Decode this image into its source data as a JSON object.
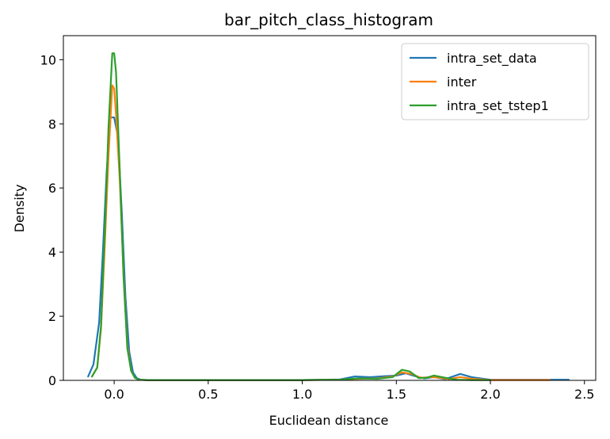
{
  "chart_data": {
    "type": "line",
    "title": "bar_pitch_class_histogram",
    "xlabel": "Euclidean distance",
    "ylabel": "Density",
    "xlim": [
      -0.27,
      2.56
    ],
    "ylim": [
      0,
      10.75
    ],
    "xticks": [
      0.0,
      0.5,
      1.0,
      1.5,
      2.0,
      2.5
    ],
    "xtick_labels": [
      "0.0",
      "0.5",
      "1.0",
      "1.5",
      "2.0",
      "2.5"
    ],
    "yticks": [
      0,
      2,
      4,
      6,
      8,
      10
    ],
    "ytick_labels": [
      "0",
      "2",
      "4",
      "6",
      "8",
      "10"
    ],
    "grid": false,
    "legend_position": "top-right",
    "series": [
      {
        "name": "intra_set_data",
        "color": "#1f77b4",
        "x": [
          -0.14,
          -0.11,
          -0.08,
          -0.06,
          -0.04,
          -0.02,
          0.0,
          0.02,
          0.04,
          0.06,
          0.08,
          0.1,
          0.12,
          0.14,
          0.18,
          0.3,
          0.6,
          1.0,
          1.2,
          1.28,
          1.36,
          1.44,
          1.5,
          1.55,
          1.6,
          1.65,
          1.7,
          1.76,
          1.84,
          1.9,
          2.0,
          2.1,
          2.2,
          2.3,
          2.42
        ],
        "values": [
          0.1,
          0.5,
          1.8,
          4.0,
          6.5,
          8.2,
          8.2,
          7.6,
          5.3,
          2.6,
          0.9,
          0.25,
          0.07,
          0.02,
          0.01,
          0.01,
          0.01,
          0.01,
          0.03,
          0.12,
          0.1,
          0.13,
          0.15,
          0.22,
          0.13,
          0.06,
          0.1,
          0.04,
          0.2,
          0.1,
          0.02,
          0.02,
          0.02,
          0.02,
          0.02
        ]
      },
      {
        "name": "inter",
        "color": "#ff7f0e",
        "x": [
          -0.12,
          -0.09,
          -0.07,
          -0.05,
          -0.03,
          -0.01,
          0.0,
          0.01,
          0.03,
          0.05,
          0.07,
          0.09,
          0.11,
          0.13,
          0.17,
          0.3,
          0.6,
          1.0,
          1.2,
          1.3,
          1.4,
          1.48,
          1.53,
          1.58,
          1.63,
          1.68,
          1.72,
          1.78,
          1.84,
          1.9,
          2.0,
          2.1,
          2.2,
          2.32
        ],
        "values": [
          0.1,
          0.4,
          1.6,
          4.2,
          7.0,
          9.2,
          9.1,
          8.3,
          6.2,
          3.3,
          1.1,
          0.3,
          0.08,
          0.02,
          0.01,
          0.01,
          0.01,
          0.01,
          0.02,
          0.05,
          0.06,
          0.12,
          0.25,
          0.2,
          0.08,
          0.1,
          0.09,
          0.04,
          0.1,
          0.05,
          0.01,
          0.01,
          0.01,
          0.01
        ]
      },
      {
        "name": "intra_set_tstep1",
        "color": "#2ca02c",
        "x": [
          -0.12,
          -0.09,
          -0.07,
          -0.05,
          -0.03,
          -0.01,
          0.0,
          0.01,
          0.03,
          0.05,
          0.07,
          0.09,
          0.11,
          0.13,
          0.17,
          0.3,
          0.6,
          1.0,
          1.2,
          1.3,
          1.4,
          1.48,
          1.53,
          1.57,
          1.62,
          1.66,
          1.7,
          1.76,
          1.82,
          1.9,
          2.0
        ],
        "values": [
          0.1,
          0.4,
          1.7,
          4.6,
          7.9,
          10.2,
          10.2,
          9.6,
          6.5,
          3.2,
          1.0,
          0.3,
          0.08,
          0.02,
          0.01,
          0.01,
          0.01,
          0.01,
          0.02,
          0.06,
          0.05,
          0.1,
          0.33,
          0.28,
          0.07,
          0.08,
          0.15,
          0.08,
          0.02,
          0.01,
          0.01
        ]
      }
    ]
  }
}
